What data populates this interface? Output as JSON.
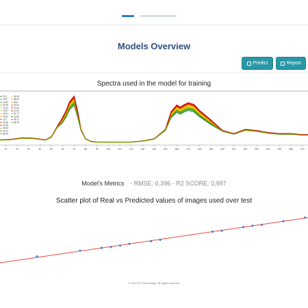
{
  "page": {
    "title": "Models Overview",
    "footer": "© 2022 XG Technology. All rights reserved."
  },
  "toolbar": {
    "predict_label": "Predict",
    "report_label": "Report",
    "predict_icon": "edit-icon",
    "report_icon": "document-icon",
    "accent_color": "#2a97a6"
  },
  "spectra": {
    "title": "Spectra used in the model for training",
    "legend_left": [
      "12,0",
      "79,07",
      "13,00",
      "21,09",
      "79,12",
      "75,07",
      "19,01",
      "75,02",
      "12,0",
      "21,08",
      "12,06",
      "33,48",
      "78,12",
      "88,19"
    ],
    "legend_right": [
      "31,08",
      "85,33",
      "80,6",
      "21,91",
      "27,61",
      "17,02",
      "91,77",
      "33,53",
      "94,71",
      "85,76"
    ]
  },
  "metrics": {
    "label": "Model's Metrics",
    "rmse": "RMSE: 0,396",
    "r2": "R2 SCORE: 0,997"
  },
  "scatter": {
    "title": "Scatter plot of Real vs Predicted values of images used over test"
  },
  "chart_data": [
    {
      "type": "line",
      "title": "Spectra used in the model for training",
      "x_ticks": [
        "10",
        "20",
        "30",
        "40",
        "50",
        "60",
        "70",
        "80",
        "90",
        "100",
        "110",
        "120",
        "130",
        "140",
        "150",
        "160",
        "170",
        "180",
        "190",
        "200",
        "210",
        "220",
        "230",
        "240",
        "250",
        "260",
        "270"
      ],
      "xlim": [
        5,
        275
      ],
      "ylim": [
        0,
        1
      ],
      "x": [
        5,
        15,
        25,
        35,
        45,
        50,
        55,
        60,
        63,
        66,
        70,
        73,
        76,
        80,
        85,
        90,
        100,
        110,
        120,
        130,
        140,
        150,
        155,
        160,
        163,
        166,
        170,
        175,
        180,
        190,
        200,
        210,
        220,
        230,
        240,
        250,
        260,
        270,
        275
      ],
      "base_values": [
        0.1,
        0.11,
        0.14,
        0.13,
        0.1,
        0.16,
        0.35,
        0.5,
        0.62,
        0.78,
        0.88,
        0.62,
        0.3,
        0.12,
        0.07,
        0.06,
        0.06,
        0.06,
        0.06,
        0.08,
        0.12,
        0.3,
        0.6,
        0.72,
        0.68,
        0.72,
        0.76,
        0.73,
        0.62,
        0.45,
        0.28,
        0.22,
        0.3,
        0.28,
        0.24,
        0.22,
        0.22,
        0.2,
        0.2
      ],
      "series_colors": [
        "#1a7f2e",
        "#2e9c2a",
        "#4caf1f",
        "#78c01a",
        "#a9cf12",
        "#d7dd10",
        "#f2c300",
        "#f29800",
        "#e84d00",
        "#d01a00",
        "#c00000",
        "#8a9c00"
      ],
      "series_scales": [
        0.9,
        0.93,
        0.95,
        0.97,
        0.99,
        1.0,
        1.02,
        1.04,
        1.06,
        1.08,
        1.1,
        0.96
      ],
      "legend_placement": "top-left",
      "grid": false
    },
    {
      "type": "scatter",
      "title": "Scatter plot of Real vs Predicted values of images used over test",
      "xlim": [
        0,
        100
      ],
      "ylim": [
        0,
        100
      ],
      "points": [
        [
          12,
          14
        ],
        [
          26,
          27
        ],
        [
          33,
          33
        ],
        [
          36,
          35
        ],
        [
          39,
          38
        ],
        [
          42,
          42
        ],
        [
          49,
          48
        ],
        [
          52,
          51
        ],
        [
          69,
          69
        ],
        [
          72,
          71
        ],
        [
          79,
          79
        ],
        [
          82,
          82
        ],
        [
          85,
          84
        ],
        [
          92,
          92
        ],
        [
          99,
          100
        ]
      ],
      "fit_line": [
        [
          0,
          0
        ],
        [
          100,
          100
        ]
      ],
      "point_color": "#4a7fd6",
      "line_color": "#e8453c",
      "grid": false
    }
  ]
}
